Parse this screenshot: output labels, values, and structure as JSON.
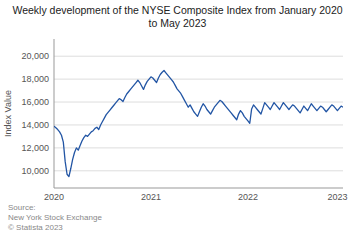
{
  "chart_data": {
    "type": "line",
    "title": "Weekly development of the NYSE Composite Index from January 2020 to May 2023",
    "y_label": "Index Value",
    "annotation": "Source:\nNew York Stock Exchange\n© Statista 2023",
    "color": "#2255a4",
    "grid": true,
    "ylim": [
      8500,
      21500
    ],
    "yticks": [
      {
        "value": 10000,
        "label": "10,000"
      },
      {
        "value": 12000,
        "label": "12,000"
      },
      {
        "value": 14000,
        "label": "14,000"
      },
      {
        "value": 16000,
        "label": "16,000"
      },
      {
        "value": 18000,
        "label": "18,000"
      },
      {
        "value": 20000,
        "label": "20,000"
      }
    ],
    "categories": [
      "2020",
      null,
      null,
      null,
      null,
      null,
      null,
      null,
      null,
      null,
      null,
      null,
      null,
      null,
      null,
      null,
      null,
      null,
      null,
      null,
      null,
      null,
      null,
      null,
      null,
      null,
      null,
      null,
      null,
      null,
      null,
      null,
      null,
      null,
      null,
      null,
      null,
      null,
      null,
      null,
      null,
      null,
      null,
      null,
      null,
      null,
      null,
      null,
      null,
      null,
      null,
      null,
      "2021",
      null,
      null,
      null,
      null,
      null,
      null,
      null,
      null,
      null,
      null,
      null,
      null,
      null,
      null,
      null,
      null,
      null,
      null,
      null,
      null,
      null,
      null,
      null,
      null,
      null,
      null,
      null,
      null,
      null,
      null,
      null,
      null,
      null,
      null,
      null,
      null,
      null,
      null,
      null,
      null,
      null,
      null,
      null,
      null,
      null,
      null,
      null,
      null,
      null,
      null,
      null,
      "2022",
      null,
      null,
      null,
      null,
      null,
      null,
      null,
      null,
      null,
      null,
      null,
      null,
      null,
      null,
      null,
      null,
      null,
      null,
      null,
      null,
      null,
      null,
      null,
      null,
      null,
      null,
      null,
      null,
      null,
      null,
      null,
      null,
      null,
      null,
      null,
      null,
      null,
      null,
      null,
      null,
      null,
      null,
      null,
      null,
      null,
      null,
      null,
      "2023",
      null,
      null,
      null
    ],
    "values": [
      13900,
      13750,
      13600,
      13400,
      13100,
      12500,
      10800,
      9700,
      9500,
      10200,
      11000,
      11600,
      12000,
      11800,
      12200,
      12600,
      12900,
      13100,
      13000,
      13200,
      13400,
      13500,
      13700,
      13800,
      13600,
      14000,
      14300,
      14600,
      14900,
      15100,
      15300,
      15500,
      15700,
      15900,
      16100,
      16300,
      16200,
      16050,
      16400,
      16700,
      16900,
      17100,
      17300,
      17500,
      17700,
      17900,
      17700,
      17400,
      17100,
      17500,
      17800,
      18000,
      18200,
      18100,
      17900,
      17700,
      18100,
      18400,
      18600,
      18750,
      18550,
      18350,
      18150,
      17950,
      17750,
      17450,
      17150,
      16950,
      16750,
      16450,
      16150,
      15850,
      15550,
      15750,
      15450,
      15150,
      14950,
      14750,
      15150,
      15550,
      15850,
      15650,
      15350,
      15150,
      14950,
      15250,
      15550,
      15750,
      15950,
      16150,
      16050,
      15850,
      15650,
      15450,
      15250,
      15050,
      14850,
      14650,
      14450,
      14950,
      15250,
      15050,
      14750,
      14550,
      14350,
      14150,
      15400,
      15750,
      15550,
      15350,
      15150,
      14950,
      15450,
      15950,
      15750,
      15550,
      15350,
      15650,
      15950,
      15750,
      15550,
      15350,
      15650,
      15950,
      15750,
      15550,
      15350,
      15550,
      15750,
      15650,
      15450,
      15250,
      15050,
      15350,
      15650,
      15450,
      15250,
      15550,
      15850,
      15650,
      15450,
      15250,
      15450,
      15650,
      15550,
      15350,
      15150,
      15350,
      15550,
      15750,
      15650,
      15450,
      15250,
      15450,
      15650,
      15550
    ]
  }
}
